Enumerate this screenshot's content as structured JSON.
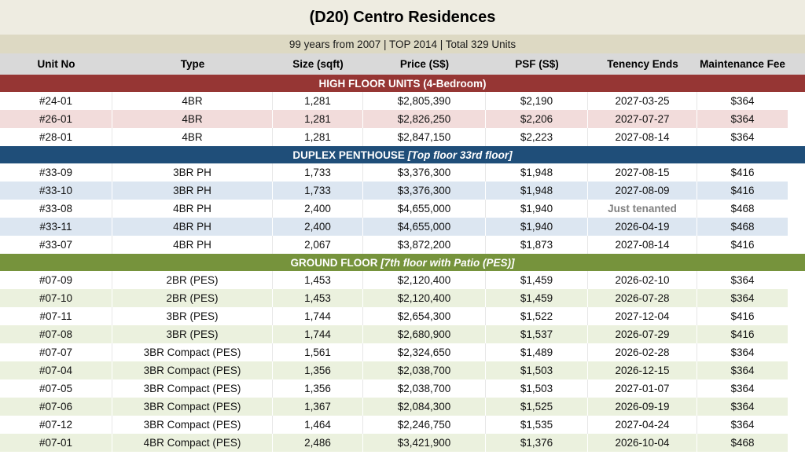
{
  "title": "(D20) Centro Residences",
  "subtitle": "99 years from 2007 | TOP 2014 | Total 329 Units",
  "colors": {
    "title_bg": "#eeece1",
    "subtitle_bg": "#ddd9c3",
    "column_header_bg": "#d9d9d9",
    "high_floor_band": "#963634",
    "penthouse_band": "#1f4e79",
    "ground_floor_band": "#76933c",
    "high_floor_tint": "#f2dcdb",
    "penthouse_tint": "#dce6f1",
    "ground_floor_tint": "#ebf1de",
    "tenanted_text": "#808080"
  },
  "table": {
    "columns": [
      "Unit No",
      "Type",
      "Size (sqft)",
      "Price (S$)",
      "PSF (S$)",
      "Tenency Ends",
      "Maintenance Fee"
    ],
    "tenanted_label": "Just tenanted",
    "sections": [
      {
        "id": "high-floor-units",
        "label_main": "HIGH FLOOR UNITS (4-Bedroom)",
        "label_note": "",
        "band_color": "#963634",
        "tint_color": "#f2dcdb",
        "rows": [
          [
            "#24-01",
            "4BR",
            "1,281",
            "$2,805,390",
            "$2,190",
            "2027-03-25",
            "$364"
          ],
          [
            "#26-01",
            "4BR",
            "1,281",
            "$2,826,250",
            "$2,206",
            "2027-07-27",
            "$364"
          ],
          [
            "#28-01",
            "4BR",
            "1,281",
            "$2,847,150",
            "$2,223",
            "2027-08-14",
            "$364"
          ]
        ]
      },
      {
        "id": "duplex-penthouse",
        "label_main": "DUPLEX PENTHOUSE",
        "label_note": "[Top floor 33rd floor]",
        "band_color": "#1f4e79",
        "tint_color": "#dce6f1",
        "rows": [
          [
            "#33-09",
            "3BR PH",
            "1,733",
            "$3,376,300",
            "$1,948",
            "2027-08-15",
            "$416"
          ],
          [
            "#33-10",
            "3BR PH",
            "1,733",
            "$3,376,300",
            "$1,948",
            "2027-08-09",
            "$416"
          ],
          [
            "#33-08",
            "4BR PH",
            "2,400",
            "$4,655,000",
            "$1,940",
            "Just tenanted",
            "$468"
          ],
          [
            "#33-11",
            "4BR PH",
            "2,400",
            "$4,655,000",
            "$1,940",
            "2026-04-19",
            "$468"
          ],
          [
            "#33-07",
            "4BR PH",
            "2,067",
            "$3,872,200",
            "$1,873",
            "2027-08-14",
            "$416"
          ]
        ]
      },
      {
        "id": "ground-floor",
        "label_main": "GROUND FLOOR",
        "label_note": "[7th floor with Patio (PES)]",
        "band_color": "#76933c",
        "tint_color": "#ebf1de",
        "rows": [
          [
            "#07-09",
            "2BR (PES)",
            "1,453",
            "$2,120,400",
            "$1,459",
            "2026-02-10",
            "$364"
          ],
          [
            "#07-10",
            "2BR (PES)",
            "1,453",
            "$2,120,400",
            "$1,459",
            "2026-07-28",
            "$364"
          ],
          [
            "#07-11",
            "3BR (PES)",
            "1,744",
            "$2,654,300",
            "$1,522",
            "2027-12-04",
            "$416"
          ],
          [
            "#07-08",
            "3BR (PES)",
            "1,744",
            "$2,680,900",
            "$1,537",
            "2026-07-29",
            "$416"
          ],
          [
            "#07-07",
            "3BR Compact (PES)",
            "1,561",
            "$2,324,650",
            "$1,489",
            "2026-02-28",
            "$364"
          ],
          [
            "#07-04",
            "3BR Compact (PES)",
            "1,356",
            "$2,038,700",
            "$1,503",
            "2026-12-15",
            "$364"
          ],
          [
            "#07-05",
            "3BR Compact (PES)",
            "1,356",
            "$2,038,700",
            "$1,503",
            "2027-01-07",
            "$364"
          ],
          [
            "#07-06",
            "3BR Compact (PES)",
            "1,367",
            "$2,084,300",
            "$1,525",
            "2026-09-19",
            "$364"
          ],
          [
            "#07-12",
            "3BR Compact (PES)",
            "1,464",
            "$2,246,750",
            "$1,535",
            "2027-04-24",
            "$364"
          ],
          [
            "#07-01",
            "4BR Compact (PES)",
            "2,486",
            "$3,421,900",
            "$1,376",
            "2026-10-04",
            "$468"
          ]
        ]
      }
    ]
  }
}
